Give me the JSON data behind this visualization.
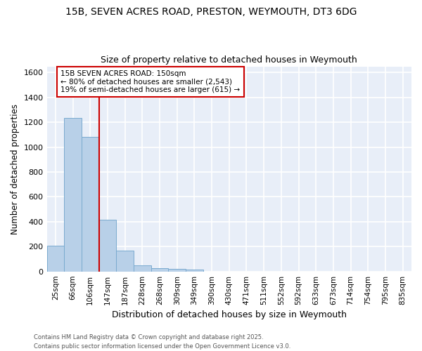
{
  "title_line1": "15B, SEVEN ACRES ROAD, PRESTON, WEYMOUTH, DT3 6DG",
  "title_line2": "Size of property relative to detached houses in Weymouth",
  "xlabel": "Distribution of detached houses by size in Weymouth",
  "ylabel": "Number of detached properties",
  "bar_labels": [
    "25sqm",
    "66sqm",
    "106sqm",
    "147sqm",
    "187sqm",
    "228sqm",
    "268sqm",
    "309sqm",
    "349sqm",
    "390sqm",
    "430sqm",
    "471sqm",
    "511sqm",
    "552sqm",
    "592sqm",
    "633sqm",
    "673sqm",
    "714sqm",
    "754sqm",
    "795sqm",
    "835sqm"
  ],
  "bar_values": [
    205,
    1235,
    1080,
    415,
    170,
    50,
    25,
    20,
    15,
    0,
    0,
    0,
    0,
    0,
    0,
    0,
    0,
    0,
    0,
    0,
    0
  ],
  "bar_color": "#b8d0e8",
  "bar_edge_color": "#7aaacf",
  "background_color": "#e8eef8",
  "grid_color": "#ffffff",
  "vline_x": 2.5,
  "vline_color": "#cc0000",
  "annotation_text": "15B SEVEN ACRES ROAD: 150sqm\n← 80% of detached houses are smaller (2,543)\n19% of semi-detached houses are larger (615) →",
  "annotation_box_color": "#ffffff",
  "annotation_box_edge": "#cc0000",
  "ylim": [
    0,
    1650
  ],
  "yticks": [
    0,
    200,
    400,
    600,
    800,
    1000,
    1200,
    1400,
    1600
  ],
  "footer_line1": "Contains HM Land Registry data © Crown copyright and database right 2025.",
  "footer_line2": "Contains public sector information licensed under the Open Government Licence v3.0.",
  "fig_bg": "#ffffff"
}
